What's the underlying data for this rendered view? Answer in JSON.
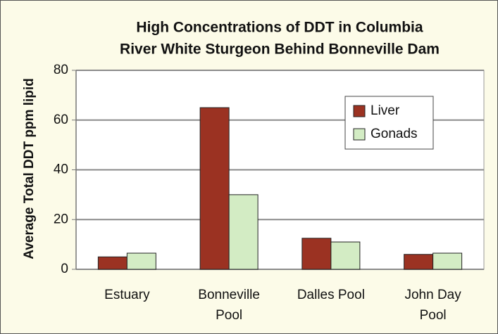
{
  "chart_data": {
    "type": "bar",
    "title": [
      "High Concentrations of DDT in Columbia",
      "River White Sturgeon Behind Bonneville Dam"
    ],
    "y_label": "Average Total DDT ppm lipid",
    "categories": [
      [
        "Estuary"
      ],
      [
        "Bonneville",
        "Pool"
      ],
      [
        "Dalles Pool"
      ],
      [
        "John Day",
        "Pool"
      ]
    ],
    "series": [
      {
        "name": "Liver",
        "color": "#9b3222",
        "values": [
          5,
          65,
          12.5,
          6
        ]
      },
      {
        "name": "Gonads",
        "color": "#d3ecc4",
        "values": [
          6.5,
          30,
          11,
          6.5
        ]
      }
    ],
    "ylim": [
      0,
      80
    ],
    "yticks": [
      0,
      20,
      40,
      60,
      80
    ],
    "grid": true,
    "legend": "upper right"
  }
}
